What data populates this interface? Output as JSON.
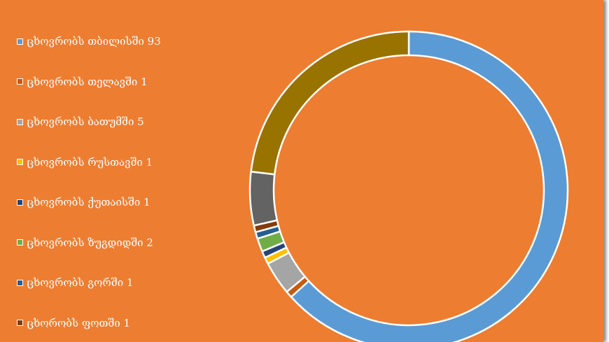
{
  "chart_data": {
    "type": "pie",
    "title": "",
    "categories": [
      "ცხოვრობს თბილისში 93",
      "ცხოვრობს თელავში 1",
      "ცხოვრობს ბათუმში 5",
      "ცხოვრობს რუსთავში 1",
      "ცხოვრობს ქუთაისში 1",
      "ცხოვრობს ზუგდიდში 2",
      "ცხოვრობს გორში 1",
      "ცხორობს ფოთში 1",
      "",
      ""
    ],
    "values": [
      93,
      1,
      5,
      1,
      1,
      2,
      1,
      1,
      8,
      34
    ],
    "colors": [
      "#5b9bd5",
      "#c55a11",
      "#a5a5a5",
      "#ffc000",
      "#264478",
      "#70ad47",
      "#255e91",
      "#843c0c",
      "#636363",
      "#997300"
    ],
    "legend_position": "left"
  }
}
